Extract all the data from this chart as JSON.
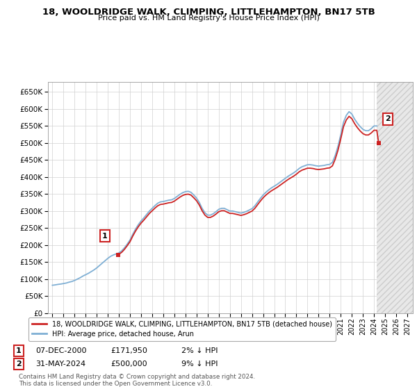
{
  "title": "18, WOOLDRIDGE WALK, CLIMPING, LITTLEHAMPTON, BN17 5TB",
  "subtitle": "Price paid vs. HM Land Registry's House Price Index (HPI)",
  "ylim": [
    0,
    680000
  ],
  "yticks": [
    0,
    50000,
    100000,
    150000,
    200000,
    250000,
    300000,
    350000,
    400000,
    450000,
    500000,
    550000,
    600000,
    650000
  ],
  "xlim_start": 1994.6,
  "xlim_end": 2027.5,
  "xticks": [
    1995,
    1996,
    1997,
    1998,
    1999,
    2000,
    2001,
    2002,
    2003,
    2004,
    2005,
    2006,
    2007,
    2008,
    2009,
    2010,
    2011,
    2012,
    2013,
    2014,
    2015,
    2016,
    2017,
    2018,
    2019,
    2020,
    2021,
    2022,
    2023,
    2024,
    2025,
    2026,
    2027
  ],
  "hpi_color": "#7fafd4",
  "price_color": "#cc2222",
  "legend_label_price": "18, WOOLDRIDGE WALK, CLIMPING, LITTLEHAMPTON, BN17 5TB (detached house)",
  "legend_label_hpi": "HPI: Average price, detached house, Arun",
  "annotation1_label": "1",
  "annotation1_date": "07-DEC-2000",
  "annotation1_price": "£171,950",
  "annotation1_hpi": "2% ↓ HPI",
  "annotation2_label": "2",
  "annotation2_date": "31-MAY-2024",
  "annotation2_price": "£500,000",
  "annotation2_hpi": "9% ↓ HPI",
  "footer": "Contains HM Land Registry data © Crown copyright and database right 2024.\nThis data is licensed under the Open Government Licence v3.0.",
  "hpi_data_x": [
    1995.0,
    1995.25,
    1995.5,
    1995.75,
    1996.0,
    1996.25,
    1996.5,
    1996.75,
    1997.0,
    1997.25,
    1997.5,
    1997.75,
    1998.0,
    1998.25,
    1998.5,
    1998.75,
    1999.0,
    1999.25,
    1999.5,
    1999.75,
    2000.0,
    2000.25,
    2000.5,
    2000.75,
    2001.0,
    2001.25,
    2001.5,
    2001.75,
    2002.0,
    2002.25,
    2002.5,
    2002.75,
    2003.0,
    2003.25,
    2003.5,
    2003.75,
    2004.0,
    2004.25,
    2004.5,
    2004.75,
    2005.0,
    2005.25,
    2005.5,
    2005.75,
    2006.0,
    2006.25,
    2006.5,
    2006.75,
    2007.0,
    2007.25,
    2007.5,
    2007.75,
    2008.0,
    2008.25,
    2008.5,
    2008.75,
    2009.0,
    2009.25,
    2009.5,
    2009.75,
    2010.0,
    2010.25,
    2010.5,
    2010.75,
    2011.0,
    2011.25,
    2011.5,
    2011.75,
    2012.0,
    2012.25,
    2012.5,
    2012.75,
    2013.0,
    2013.25,
    2013.5,
    2013.75,
    2014.0,
    2014.25,
    2014.5,
    2014.75,
    2015.0,
    2015.25,
    2015.5,
    2015.75,
    2016.0,
    2016.25,
    2016.5,
    2016.75,
    2017.0,
    2017.25,
    2017.5,
    2017.75,
    2018.0,
    2018.25,
    2018.5,
    2018.75,
    2019.0,
    2019.25,
    2019.5,
    2019.75,
    2020.0,
    2020.25,
    2020.5,
    2020.75,
    2021.0,
    2021.25,
    2021.5,
    2021.75,
    2022.0,
    2022.25,
    2022.5,
    2022.75,
    2023.0,
    2023.25,
    2023.5,
    2023.75,
    2024.0,
    2024.25
  ],
  "hpi_data_y": [
    82000,
    83000,
    84500,
    85500,
    87000,
    88500,
    91000,
    93000,
    96000,
    100000,
    104000,
    109000,
    113000,
    117000,
    122000,
    127000,
    133000,
    140000,
    147000,
    154000,
    161000,
    167000,
    171000,
    174000,
    177000,
    183000,
    192000,
    203000,
    215000,
    232000,
    247000,
    260000,
    271000,
    280000,
    290000,
    300000,
    308000,
    316000,
    323000,
    327000,
    328000,
    330000,
    332000,
    333000,
    337000,
    343000,
    349000,
    354000,
    357000,
    358000,
    355000,
    347000,
    338000,
    325000,
    308000,
    295000,
    288000,
    288000,
    292000,
    298000,
    305000,
    308000,
    308000,
    304000,
    300000,
    300000,
    298000,
    296000,
    294000,
    296000,
    299000,
    303000,
    307000,
    315000,
    326000,
    337000,
    347000,
    355000,
    362000,
    368000,
    373000,
    378000,
    384000,
    390000,
    396000,
    402000,
    407000,
    412000,
    418000,
    425000,
    430000,
    433000,
    436000,
    436000,
    435000,
    433000,
    432000,
    433000,
    434000,
    436000,
    437000,
    443000,
    463000,
    490000,
    524000,
    561000,
    581000,
    592000,
    585000,
    570000,
    558000,
    548000,
    540000,
    536000,
    536000,
    542000,
    550000,
    550000
  ],
  "sale1_x": 2000.92,
  "sale1_y": 171950,
  "sale2_x": 2024.42,
  "sale2_y": 500000
}
